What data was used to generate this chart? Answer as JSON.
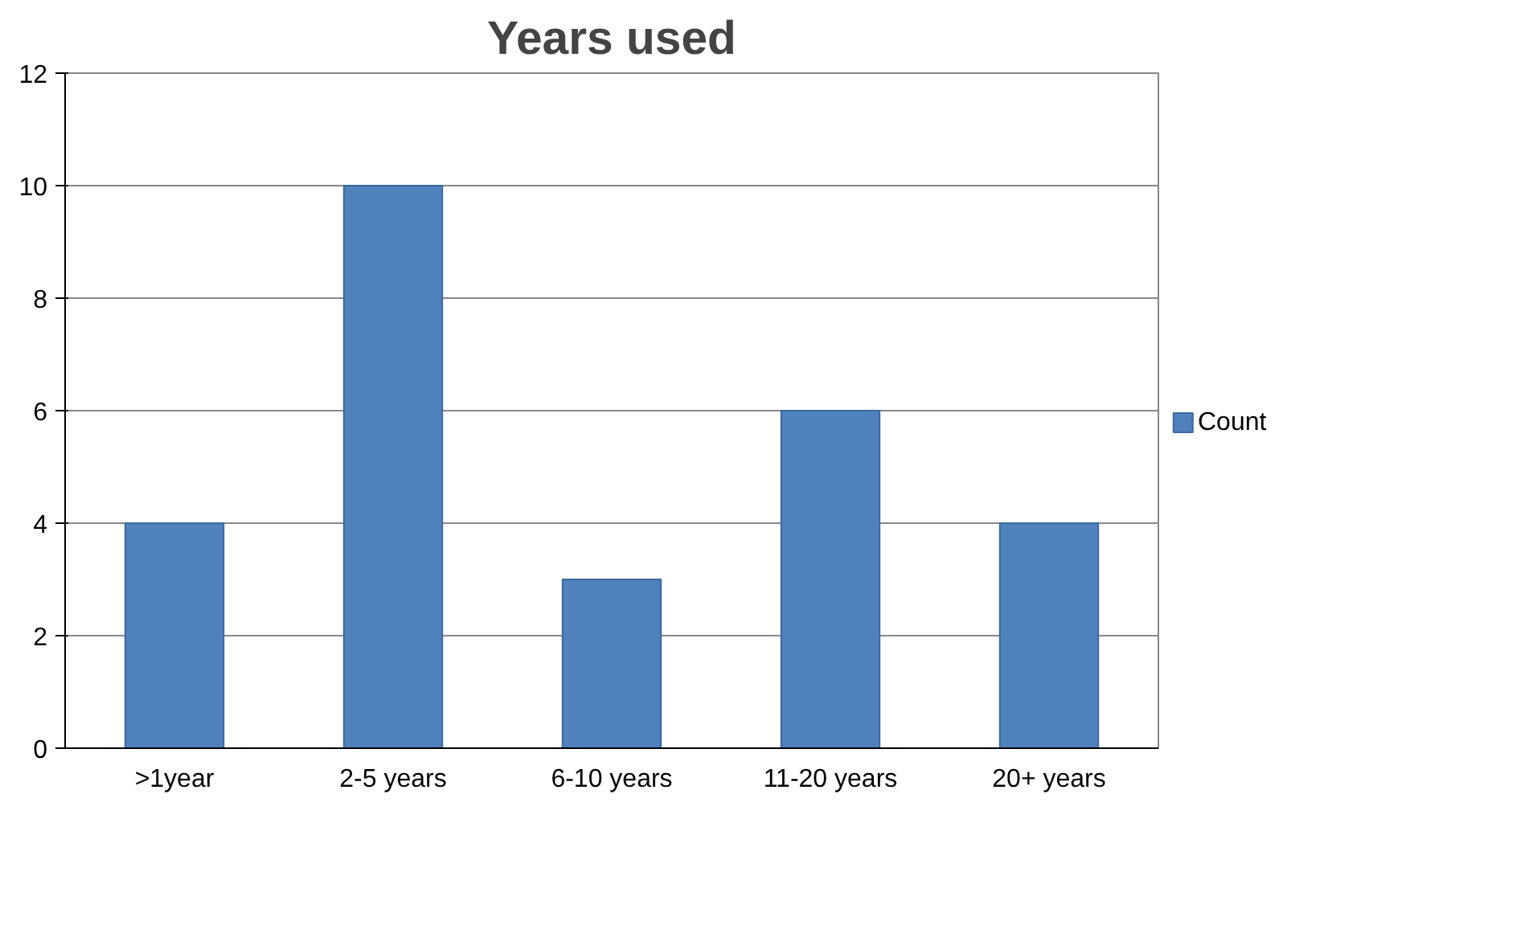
{
  "chart_data": {
    "type": "bar",
    "title": "Years used",
    "categories": [
      ">1year",
      "2-5 years",
      "6-10 years",
      "11-20 years",
      "20+ years"
    ],
    "series": [
      {
        "name": "Count",
        "color": "#4f81bd",
        "values": [
          4,
          10,
          3,
          6,
          4
        ]
      }
    ],
    "ylim": [
      0,
      12
    ],
    "yticks": [
      0,
      2,
      4,
      6,
      8,
      10,
      12
    ],
    "grid": "y",
    "legend": "right"
  }
}
